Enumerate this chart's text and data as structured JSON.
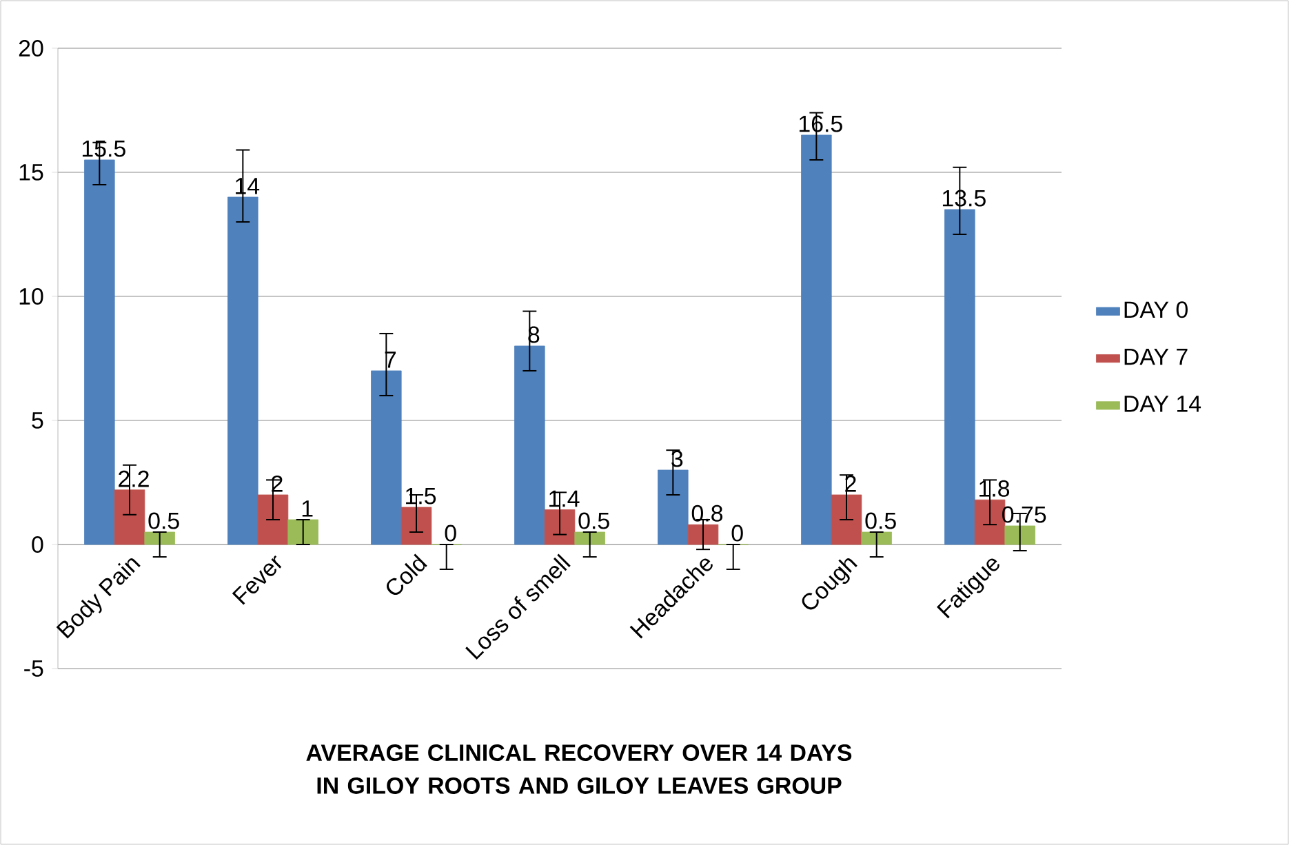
{
  "chart_data": {
    "type": "bar",
    "title": "AVERAGE CLINICAL RECOVERY OVER 14 DAYS IN GILOY ROOTS AND GILOY LEAVES GROUP",
    "categories": [
      "Body Pain",
      "Fever",
      "Cold",
      "Loss of smell",
      "Headache",
      "Cough",
      "Fatigue"
    ],
    "series": [
      {
        "name": "DAY 0",
        "color": "#4f81bd",
        "values": [
          15.5,
          14,
          7,
          8,
          3,
          16.5,
          13.5
        ],
        "errors": [
          [
            14.5,
            16.2
          ],
          [
            13,
            15.9
          ],
          [
            6,
            8.5
          ],
          [
            7,
            9.4
          ],
          [
            2,
            3.8
          ],
          [
            15.5,
            17.4
          ],
          [
            12.5,
            15.2
          ]
        ]
      },
      {
        "name": "DAY 7",
        "color": "#c0504d",
        "values": [
          2.2,
          2,
          1.5,
          1.4,
          0.8,
          2,
          1.8
        ],
        "errors": [
          [
            1.2,
            3.2
          ],
          [
            1,
            2.6
          ],
          [
            0.5,
            2
          ],
          [
            0.4,
            2.1
          ],
          [
            -0.2,
            1
          ],
          [
            1,
            2.8
          ],
          [
            0.8,
            2.6
          ]
        ]
      },
      {
        "name": "DAY 14",
        "color": "#9bbb59",
        "values": [
          0.5,
          1,
          0,
          0.5,
          0,
          0.5,
          0.75
        ],
        "errors": [
          [
            -0.5,
            0.5
          ],
          [
            0,
            1
          ],
          [
            -1,
            0
          ],
          [
            -0.5,
            0.5
          ],
          [
            -1,
            0
          ],
          [
            -0.5,
            0.5
          ],
          [
            -0.25,
            1.25
          ]
        ]
      }
    ],
    "ylim": [
      -5,
      20
    ],
    "yticks": [
      -5,
      0,
      5,
      10,
      15,
      20
    ],
    "grid": "y",
    "legend": "right",
    "data_labels": true
  }
}
